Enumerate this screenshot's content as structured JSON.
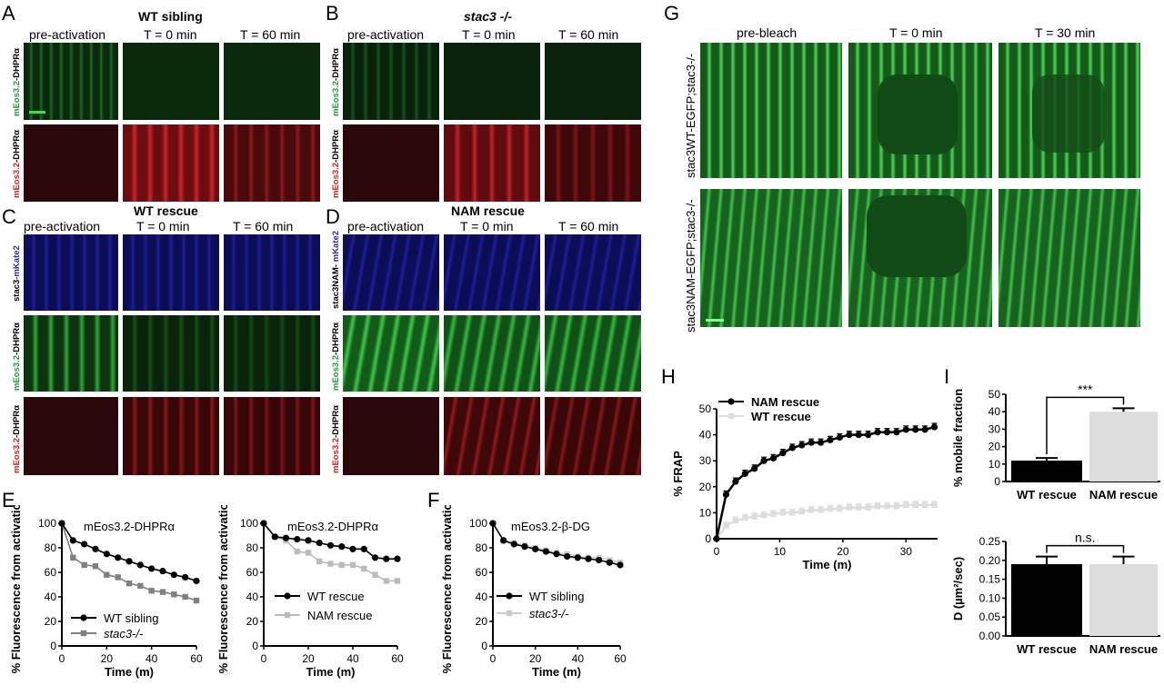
{
  "panels": {
    "A": {
      "letter": "A",
      "title": "WT sibling",
      "cols": [
        "pre-activation",
        "T = 0 min",
        "T = 60 min"
      ],
      "rowlabels": [
        {
          "green": "mEos3.2",
          "black": "-DHPRα"
        },
        {
          "red": "mEos3.2",
          "black": "-DHPRα"
        }
      ]
    },
    "B": {
      "letter": "B",
      "title": "stac3 -/-",
      "cols": [
        "pre-activation",
        "T = 0 min",
        "T = 60 min"
      ],
      "rowlabels": [
        {
          "green": "mEos3.2",
          "black": "-DHPRα"
        },
        {
          "red": "mEos3.2",
          "black": "-DHPRα"
        }
      ]
    },
    "C": {
      "letter": "C",
      "title": "WT rescue",
      "cols": [
        "pre-activation",
        "T = 0 min",
        "T = 60 min"
      ],
      "rowlabels": [
        {
          "black": "stac3",
          "blue": "-mKate2"
        },
        {
          "green": "mEos3.2",
          "black": "-DHPRα"
        },
        {
          "red": "mEos3.2",
          "black": "-DHPRα"
        }
      ]
    },
    "D": {
      "letter": "D",
      "title": "NAM rescue",
      "cols": [
        "pre-activation",
        "T = 0 min",
        "T = 60 min"
      ],
      "rowlabels": [
        {
          "black": "stac3NAM-",
          "blue": " mKate2"
        },
        {
          "green": "mEos3.2",
          "black": "-DHPRα"
        },
        {
          "red": "mEos3.2",
          "black": "-DHPRα"
        }
      ]
    },
    "E": {
      "letter": "E"
    },
    "F": {
      "letter": "F"
    },
    "G": {
      "letter": "G",
      "cols": [
        "pre-bleach",
        "T = 0 min",
        "T = 30 min"
      ],
      "rowlabels": [
        "stac3WT-EGFP;stac3-/-",
        "stac3NAM-EGFP;stac3-/-"
      ]
    },
    "H": {
      "letter": "H"
    },
    "I": {
      "letter": "I"
    }
  },
  "chart_data": [
    {
      "id": "E1",
      "type": "line",
      "annotation": "mEos3.2-DHPRα",
      "xlabel": "Time (m)",
      "ylabel": "% Fluorescence from activation",
      "xlim": [
        0,
        60
      ],
      "ylim": [
        0,
        100
      ],
      "xticks": [
        0,
        20,
        40,
        60
      ],
      "yticks": [
        0,
        20,
        40,
        60,
        80,
        100
      ],
      "series": [
        {
          "name": "WT sibling",
          "color": "#000000",
          "marker": "circle",
          "x": [
            0,
            5,
            10,
            15,
            20,
            25,
            30,
            35,
            40,
            45,
            50,
            55,
            60
          ],
          "y": [
            100,
            86,
            83,
            79,
            75,
            72,
            69,
            66,
            63,
            61,
            58,
            56,
            53
          ]
        },
        {
          "name": "stac3-/-",
          "color": "#808080",
          "marker": "square",
          "x": [
            0,
            5,
            10,
            15,
            20,
            25,
            30,
            35,
            40,
            45,
            50,
            55,
            60
          ],
          "y": [
            100,
            72,
            66,
            65,
            58,
            56,
            51,
            49,
            45,
            44,
            42,
            40,
            37
          ]
        }
      ]
    },
    {
      "id": "E2",
      "type": "line",
      "annotation": "mEos3.2-DHPRα",
      "xlabel": "Time (m)",
      "ylabel": "% Fluorescence from activation",
      "xlim": [
        0,
        60
      ],
      "ylim": [
        0,
        100
      ],
      "xticks": [
        0,
        20,
        40,
        60
      ],
      "yticks": [
        0,
        20,
        40,
        60,
        80,
        100
      ],
      "series": [
        {
          "name": "WT rescue",
          "color": "#000000",
          "marker": "circle",
          "x": [
            0,
            5,
            10,
            15,
            20,
            25,
            30,
            35,
            40,
            45,
            50,
            55,
            60
          ],
          "y": [
            100,
            89,
            88,
            87,
            86,
            84,
            82,
            81,
            79,
            79,
            72,
            71,
            71
          ]
        },
        {
          "name": "NAM rescue",
          "color": "#bbbbbb",
          "marker": "square",
          "x": [
            0,
            5,
            10,
            15,
            20,
            25,
            30,
            35,
            40,
            45,
            50,
            55,
            60
          ],
          "y": [
            100,
            89,
            86,
            77,
            76,
            69,
            67,
            66,
            66,
            63,
            58,
            53,
            53
          ]
        }
      ]
    },
    {
      "id": "F",
      "type": "line",
      "annotation": "mEos3.2-β-DG",
      "xlabel": "Time (m)",
      "ylabel": "% Fluorescence from activation",
      "xlim": [
        0,
        60
      ],
      "ylim": [
        0,
        100
      ],
      "xticks": [
        0,
        20,
        40,
        60
      ],
      "yticks": [
        0,
        20,
        40,
        60,
        80,
        100
      ],
      "series": [
        {
          "name": "WT sibling",
          "color": "#000000",
          "marker": "circle",
          "x": [
            0,
            5,
            10,
            15,
            20,
            25,
            30,
            35,
            40,
            45,
            50,
            55,
            60
          ],
          "y": [
            100,
            86,
            83,
            81,
            79,
            77,
            75,
            73,
            72,
            71,
            70,
            68,
            66
          ]
        },
        {
          "name": "stac3-/-",
          "color": "#cccccc",
          "marker": "square",
          "x": [
            0,
            5,
            10,
            15,
            20,
            25,
            30,
            35,
            40,
            45,
            50,
            55,
            60
          ],
          "y": [
            100,
            86,
            84,
            82,
            80,
            78,
            76,
            75,
            73,
            72,
            72,
            70,
            68
          ]
        }
      ]
    },
    {
      "id": "H",
      "type": "line",
      "xlabel": "Time (m)",
      "ylabel": "% FRAP",
      "xlim": [
        0,
        35
      ],
      "ylim": [
        0,
        50
      ],
      "xticks": [
        0,
        10,
        20,
        30
      ],
      "yticks": [
        0,
        10,
        20,
        30,
        40,
        50
      ],
      "series": [
        {
          "name": "NAM rescue",
          "color": "#000000",
          "marker": "circle",
          "x": [
            0,
            1.5,
            3,
            4.5,
            6,
            7.5,
            9,
            10.5,
            12,
            13.5,
            15,
            16.5,
            18,
            19.5,
            21,
            22.5,
            24,
            25.5,
            27,
            28.5,
            30,
            31.5,
            33,
            34.5
          ],
          "y": [
            0,
            17,
            22,
            25,
            27,
            30,
            31,
            33,
            35,
            36,
            37,
            37,
            38,
            39,
            40,
            40,
            40,
            41,
            41,
            41,
            42,
            42,
            42,
            43
          ]
        },
        {
          "name": "WT rescue",
          "color": "#dddddd",
          "marker": "square",
          "x": [
            0,
            1.5,
            3,
            4.5,
            6,
            7.5,
            9,
            10.5,
            12,
            13.5,
            15,
            16.5,
            18,
            19.5,
            21,
            22.5,
            24,
            25.5,
            27,
            28.5,
            30,
            31.5,
            33,
            34.5
          ],
          "y": [
            0,
            5,
            7,
            8,
            8.5,
            9,
            9.5,
            10,
            10,
            10.5,
            11,
            11,
            11.5,
            11.5,
            12,
            12,
            12,
            12.5,
            12.5,
            12.5,
            13,
            13,
            13,
            13
          ]
        }
      ]
    },
    {
      "id": "I1",
      "type": "bar",
      "ylabel": "% mobile fraction",
      "categories": [
        "WT rescue",
        "NAM rescue"
      ],
      "values": [
        12,
        40
      ],
      "errors": [
        1.5,
        2
      ],
      "colors": [
        "#000000",
        "#dddddd"
      ],
      "ylim": [
        0,
        50
      ],
      "yticks": [
        0,
        10,
        20,
        30,
        40,
        50
      ],
      "significance": "***"
    },
    {
      "id": "I2",
      "type": "bar",
      "ylabel": "D (µm²/sec)",
      "categories": [
        "WT rescue",
        "NAM rescue"
      ],
      "values": [
        0.19,
        0.19
      ],
      "errors": [
        0.02,
        0.02
      ],
      "colors": [
        "#000000",
        "#dddddd"
      ],
      "ylim": [
        0,
        0.25
      ],
      "yticks": [
        "0.00",
        "0.05",
        "0.10",
        "0.15",
        "0.20",
        "0.25"
      ],
      "significance": "n.s."
    }
  ]
}
